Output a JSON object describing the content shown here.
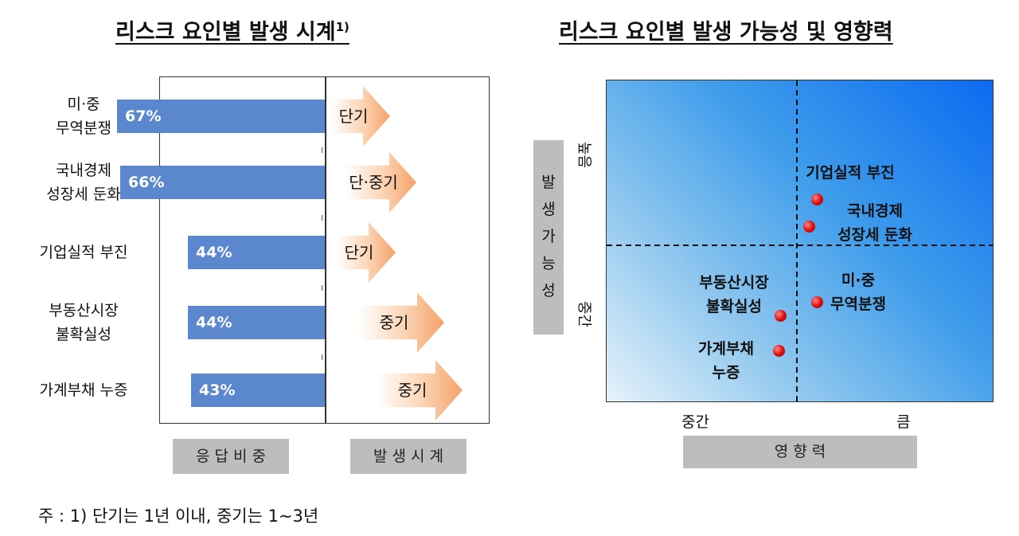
{
  "left_title": "리스크 요인별 발생 시계",
  "left_title_sup": "1)",
  "right_title": "리스크 요인별 발생 가능성 및 영향력",
  "chart_data": [
    {
      "type": "bar",
      "categories": [
        "미·중\n무역분쟁",
        "국내경제\n성장세 둔화",
        "기업실적 부진",
        "부동산시장\n불확실성",
        "가계부채 누증"
      ],
      "series": [
        {
          "values": [
            67,
            66,
            44,
            44,
            43
          ]
        }
      ],
      "value_labels": [
        "67%",
        "66%",
        "44%",
        "44%",
        "43%"
      ],
      "timing_labels": [
        "단기",
        "단·중기",
        "단기",
        "중기",
        "중기"
      ],
      "xlabel": "응 답 비 중",
      "timing_xlabel": "발 생 시 계",
      "bar_color": "#5b87cf",
      "arrow_color": "#f5a268"
    },
    {
      "type": "scatter",
      "xlabel": "영 향 력",
      "ylabel": "발생가능성",
      "x_ticks": [
        "중간",
        "큼"
      ],
      "y_ticks": [
        "높음",
        "중간"
      ],
      "points": [
        {
          "label": "기업실적 부진",
          "impact": "큼",
          "likelihood": "높음"
        },
        {
          "label": "국내경제\n성장세 둔화",
          "impact": "큼",
          "likelihood": "높음"
        },
        {
          "label": "미·중\n무역분쟁",
          "impact": "큼",
          "likelihood": "중간"
        },
        {
          "label": "부동산시장\n불확실성",
          "impact": "중간",
          "likelihood": "중간"
        },
        {
          "label": "가계부채\n누증",
          "impact": "중간",
          "likelihood": "중간"
        }
      ],
      "dot_color": "#e01010"
    }
  ],
  "note": "주 : 1) 단기는 1년 이내, 중기는 1~3년"
}
